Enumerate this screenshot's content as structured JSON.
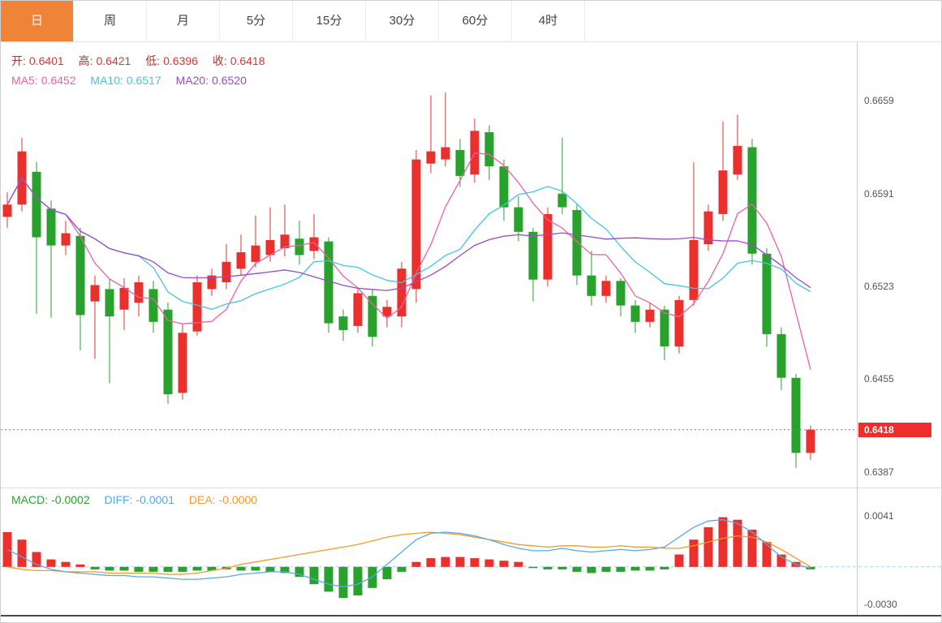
{
  "tabs": [
    {
      "label": "日",
      "active": true
    },
    {
      "label": "周",
      "active": false
    },
    {
      "label": "月",
      "active": false
    },
    {
      "label": "5分",
      "active": false
    },
    {
      "label": "15分",
      "active": false
    },
    {
      "label": "30分",
      "active": false
    },
    {
      "label": "60分",
      "active": false
    },
    {
      "label": "4时",
      "active": false
    }
  ],
  "ohlc": {
    "open_label": "开:",
    "open": "0.6401",
    "high_label": "高:",
    "high": "0.6421",
    "low_label": "低:",
    "low": "0.6396",
    "close_label": "收:",
    "close": "0.6418"
  },
  "ma": {
    "ma5_label": "MA5:",
    "ma5": "0.6452",
    "ma10_label": "MA10:",
    "ma10": "0.6517",
    "ma20_label": "MA20:",
    "ma20": "0.6520"
  },
  "macd_header": {
    "macd_label": "MACD:",
    "macd": "-0.0002",
    "diff_label": "DIFF:",
    "diff": "-0.0001",
    "dea_label": "DEA:",
    "dea": "-0.0000"
  },
  "price_tag": "0.6418",
  "colors": {
    "up": "#e9302d",
    "down": "#28a22c",
    "ma5": "#f05fa6",
    "ma10": "#43c4e6",
    "ma20": "#9a4bc8",
    "current_line": "#e0523c",
    "tag_bg": "#ee2e2c",
    "diff_line": "#58a8e8",
    "dea_line": "#f59a23",
    "zero_line": "#a6d3f0",
    "active_tab": "#ef8439"
  },
  "chart_data": [
    {
      "type": "candlestick",
      "panel": "main",
      "title": "",
      "y_axis_labels": [
        0.6659,
        0.6591,
        0.6523,
        0.6455,
        0.6387
      ],
      "price_range": [
        0.6375,
        0.6702
      ],
      "current_price": 0.6418,
      "grid": false,
      "overlays": [
        {
          "name": "MA5",
          "period": 5,
          "color": "#f05fa6"
        },
        {
          "name": "MA10",
          "period": 10,
          "color": "#43c4e6"
        },
        {
          "name": "MA20",
          "period": 20,
          "color": "#9a4bc8"
        }
      ],
      "candles_format": [
        "open",
        "high",
        "low",
        "close"
      ],
      "candles": [
        [
          0.6574,
          0.6592,
          0.6566,
          0.6583
        ],
        [
          0.6583,
          0.6632,
          0.6578,
          0.6622
        ],
        [
          0.6607,
          0.6614,
          0.6503,
          0.6559
        ],
        [
          0.658,
          0.6586,
          0.65,
          0.6553
        ],
        [
          0.6553,
          0.6571,
          0.6546,
          0.6562
        ],
        [
          0.656,
          0.6566,
          0.6476,
          0.6502
        ],
        [
          0.6512,
          0.6531,
          0.647,
          0.6524
        ],
        [
          0.6521,
          0.6529,
          0.6452,
          0.6501
        ],
        [
          0.6506,
          0.6529,
          0.6491,
          0.6522
        ],
        [
          0.6511,
          0.6531,
          0.6501,
          0.6526
        ],
        [
          0.6521,
          0.6527,
          0.6489,
          0.6497
        ],
        [
          0.6506,
          0.6511,
          0.6437,
          0.6444
        ],
        [
          0.6445,
          0.6496,
          0.644,
          0.6489
        ],
        [
          0.649,
          0.6531,
          0.6487,
          0.6526
        ],
        [
          0.6521,
          0.6536,
          0.6516,
          0.6531
        ],
        [
          0.6526,
          0.6554,
          0.6521,
          0.6541
        ],
        [
          0.6536,
          0.6561,
          0.6531,
          0.6548
        ],
        [
          0.6541,
          0.6575,
          0.6537,
          0.6553
        ],
        [
          0.6546,
          0.6581,
          0.6541,
          0.6557
        ],
        [
          0.6551,
          0.6583,
          0.6545,
          0.6561
        ],
        [
          0.6558,
          0.6571,
          0.6539,
          0.6546
        ],
        [
          0.6549,
          0.6576,
          0.6543,
          0.6559
        ],
        [
          0.6556,
          0.6559,
          0.6489,
          0.6496
        ],
        [
          0.6501,
          0.6506,
          0.6483,
          0.6491
        ],
        [
          0.6494,
          0.6521,
          0.6489,
          0.6518
        ],
        [
          0.6516,
          0.6521,
          0.6479,
          0.6486
        ],
        [
          0.6501,
          0.6513,
          0.6493,
          0.6508
        ],
        [
          0.6501,
          0.6541,
          0.6493,
          0.6536
        ],
        [
          0.6521,
          0.6623,
          0.6511,
          0.6616
        ],
        [
          0.6613,
          0.6663,
          0.6606,
          0.6622
        ],
        [
          0.6616,
          0.6665,
          0.6611,
          0.6625
        ],
        [
          0.6623,
          0.6631,
          0.6596,
          0.6604
        ],
        [
          0.6605,
          0.6646,
          0.6599,
          0.6637
        ],
        [
          0.6636,
          0.6641,
          0.6601,
          0.6611
        ],
        [
          0.6611,
          0.6616,
          0.6571,
          0.6581
        ],
        [
          0.6581,
          0.6589,
          0.6556,
          0.6563
        ],
        [
          0.6563,
          0.6566,
          0.6512,
          0.6528
        ],
        [
          0.6528,
          0.6581,
          0.6523,
          0.6576
        ],
        [
          0.6591,
          0.6632,
          0.6576,
          0.6581
        ],
        [
          0.6579,
          0.6583,
          0.6524,
          0.6531
        ],
        [
          0.6531,
          0.6549,
          0.6509,
          0.6516
        ],
        [
          0.6516,
          0.6531,
          0.6511,
          0.6527
        ],
        [
          0.6527,
          0.6529,
          0.6501,
          0.6509
        ],
        [
          0.6509,
          0.6513,
          0.6489,
          0.6497
        ],
        [
          0.6497,
          0.6511,
          0.6493,
          0.6506
        ],
        [
          0.6506,
          0.6509,
          0.6469,
          0.6479
        ],
        [
          0.6479,
          0.6516,
          0.6474,
          0.6513
        ],
        [
          0.6513,
          0.6614,
          0.6509,
          0.6557
        ],
        [
          0.6554,
          0.6583,
          0.6549,
          0.6578
        ],
        [
          0.6576,
          0.6644,
          0.6571,
          0.6608
        ],
        [
          0.6605,
          0.6649,
          0.6601,
          0.6626
        ],
        [
          0.6625,
          0.6631,
          0.6539,
          0.6547
        ],
        [
          0.6547,
          0.6551,
          0.6479,
          0.6488
        ],
        [
          0.6488,
          0.6493,
          0.6447,
          0.6456
        ],
        [
          0.6456,
          0.6459,
          0.639,
          0.6401
        ],
        [
          0.6401,
          0.6421,
          0.6396,
          0.6418
        ]
      ]
    },
    {
      "type": "bar",
      "panel": "macd",
      "title": "MACD(12,26,9)",
      "y_axis_labels": [
        0.0041,
        -0.003
      ],
      "value_range": [
        -0.004,
        0.0045
      ],
      "grid": false,
      "series": [
        {
          "name": "MACD",
          "type": "histogram",
          "values": [
            0.0028,
            0.0022,
            0.0012,
            0.0006,
            0.0004,
            0.0002,
            -0.0002,
            -0.0003,
            -0.0003,
            -0.0004,
            -0.0004,
            -0.0004,
            -0.0004,
            -0.0003,
            -0.0003,
            -0.0002,
            -0.0003,
            -0.0003,
            -0.0004,
            -0.0005,
            -0.0008,
            -0.0014,
            -0.002,
            -0.0025,
            -0.0023,
            -0.0017,
            -0.001,
            -0.0004,
            0.0004,
            0.0007,
            0.0008,
            0.0008,
            0.0007,
            0.0006,
            0.0005,
            0.0004,
            -0.0001,
            -0.0002,
            -0.0002,
            -0.0004,
            -0.0005,
            -0.0004,
            -0.0004,
            -0.0003,
            -0.0003,
            -0.0002,
            0.001,
            0.0022,
            0.0032,
            0.004,
            0.0038,
            0.003,
            0.002,
            0.001,
            0.0004,
            -0.0002
          ]
        },
        {
          "name": "DIFF",
          "type": "line",
          "color": "#58a8e8",
          "values": [
            0.0014,
            0.0008,
            0.0002,
            -0.0002,
            -0.0004,
            -0.0005,
            -0.0006,
            -0.0007,
            -0.0007,
            -0.0008,
            -0.0008,
            -0.0009,
            -0.001,
            -0.001,
            -0.0009,
            -0.0008,
            -0.0006,
            -0.0005,
            -0.0004,
            -0.0004,
            -0.0006,
            -0.001,
            -0.0014,
            -0.0016,
            -0.0014,
            -0.0008,
            0.0002,
            0.0012,
            0.0022,
            0.0027,
            0.0028,
            0.0027,
            0.0025,
            0.0022,
            0.0018,
            0.0015,
            0.0013,
            0.0013,
            0.0015,
            0.0013,
            0.0012,
            0.0013,
            0.0014,
            0.0013,
            0.0014,
            0.0016,
            0.0024,
            0.0032,
            0.0037,
            0.0038,
            0.0035,
            0.0028,
            0.0018,
            0.0008,
            0.0002,
            -0.0001
          ]
        },
        {
          "name": "DEA",
          "type": "line",
          "color": "#f59a23",
          "values": [
            0.0,
            -0.0002,
            -0.0003,
            -0.0003,
            -0.0004,
            -0.0004,
            -0.0004,
            -0.0005,
            -0.0005,
            -0.0005,
            -0.0005,
            -0.0006,
            -0.0006,
            -0.0005,
            -0.0003,
            -0.0001,
            0.0002,
            0.0004,
            0.0006,
            0.0008,
            0.001,
            0.0012,
            0.0014,
            0.0016,
            0.0018,
            0.0021,
            0.0024,
            0.0026,
            0.0027,
            0.0028,
            0.0027,
            0.0026,
            0.0024,
            0.0022,
            0.002,
            0.0018,
            0.0017,
            0.0016,
            0.0017,
            0.0017,
            0.0016,
            0.0016,
            0.0017,
            0.0016,
            0.0016,
            0.0015,
            0.0015,
            0.0017,
            0.002,
            0.0023,
            0.0025,
            0.0024,
            0.002,
            0.0014,
            0.0007,
            0.0
          ]
        }
      ]
    }
  ]
}
